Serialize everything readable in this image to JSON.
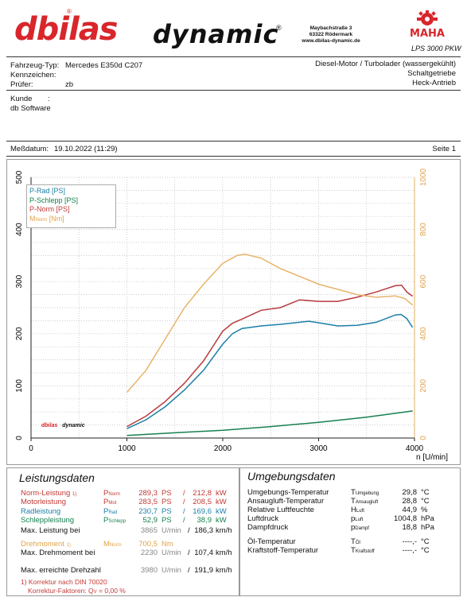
{
  "header": {
    "brand1": "dbilas",
    "brand2": "dynamic",
    "address": [
      "Maybachstraße 3",
      "63322 Rödermark",
      "www.dbilas-dynamic.de"
    ],
    "maha": "MAHA",
    "model": "LPS 3000 PKW"
  },
  "vehicle": {
    "type_label": "Fahrzeug-Typ:",
    "type_value": "Mercedes E350d C207",
    "plate_label": "Kennzeichen:",
    "tester_label": "Prüfer:",
    "tester_value": "zb",
    "engine": "Diesel-Motor / Turbolader (wassergekühlt)",
    "gearbox": "Schaltgetriebe",
    "drive": "Heck-Antrieb"
  },
  "customer": {
    "label": "Kunde",
    "sep": ":",
    "value": "db Software"
  },
  "meta": {
    "date_label": "Meßdatum:",
    "date_value": "19.10.2022 (11:29)",
    "page": "Seite 1"
  },
  "chart_data": {
    "type": "line",
    "xlabel": "n [U/min]",
    "xlim": [
      0,
      4000
    ],
    "ylim_left": [
      0,
      500
    ],
    "ylim_right": [
      0,
      1000
    ],
    "x_ticks": [
      "0",
      "1000",
      "2000",
      "3000",
      "4000"
    ],
    "y_ticks_left": [
      "0",
      "100",
      "200",
      "300",
      "400",
      "500"
    ],
    "y_ticks_right": [
      "0",
      "200",
      "400",
      "600",
      "800",
      "1000"
    ],
    "legend": [
      "P-Rad [PS]",
      "P-Schlepp [PS]",
      "P-Norm [PS]",
      "M",
      "Norm",
      "[Nm]"
    ],
    "series": [
      {
        "name": "P-Rad [PS]",
        "color": "#1a7fa8",
        "axis": "left",
        "x": [
          1000,
          1200,
          1400,
          1600,
          1800,
          2000,
          2100,
          2200,
          2400,
          2600,
          2800,
          2900,
          3000,
          3200,
          3400,
          3600,
          3800,
          3860,
          3920,
          3980
        ],
        "y": [
          18,
          35,
          60,
          92,
          130,
          180,
          200,
          210,
          215,
          218,
          222,
          224,
          221,
          215,
          216,
          222,
          236,
          237,
          229,
          212
        ]
      },
      {
        "name": "P-Schlepp [PS]",
        "color": "#17804f",
        "axis": "left",
        "x": [
          1000,
          1500,
          2000,
          2500,
          3000,
          3500,
          3980
        ],
        "y": [
          5,
          10,
          15,
          22,
          30,
          40,
          52
        ]
      },
      {
        "name": "P-Norm [PS]",
        "color": "#b83a3f",
        "axis": "left",
        "x": [
          1000,
          1200,
          1400,
          1600,
          1800,
          2000,
          2100,
          2200,
          2400,
          2600,
          2800,
          3000,
          3200,
          3400,
          3600,
          3800,
          3865,
          3920,
          3980
        ],
        "y": [
          22,
          42,
          70,
          105,
          148,
          205,
          220,
          228,
          245,
          250,
          265,
          262,
          262,
          270,
          280,
          292,
          293,
          280,
          272
        ]
      },
      {
        "name": "M Norm [Nm]",
        "color": "#e8b36a",
        "axis": "right",
        "x": [
          1000,
          1200,
          1400,
          1600,
          1800,
          2000,
          2100,
          2150,
          2230,
          2400,
          2600,
          2800,
          3000,
          3200,
          3400,
          3600,
          3800,
          3900,
          3980
        ],
        "y": [
          175,
          260,
          380,
          500,
          590,
          670,
          690,
          700,
          705,
          690,
          650,
          620,
          590,
          570,
          550,
          540,
          545,
          535,
          510
        ]
      }
    ]
  },
  "performance": {
    "title": "Leistungsdaten",
    "rows": [
      {
        "label": "Norm-Leistung",
        "fn": "1)",
        "sym": "P",
        "symsub": "Norm",
        "v1": "289,3",
        "u1": "PS",
        "sep": "/",
        "v2": "212,8",
        "u2": "kW"
      },
      {
        "label": "Motorleistung",
        "fn": "",
        "sym": "P",
        "symsub": "Mot",
        "v1": "283,5",
        "u1": "PS",
        "sep": "/",
        "v2": "208,5",
        "u2": "kW"
      },
      {
        "label": "Radleistung",
        "fn": "",
        "sym": "P",
        "symsub": "Rad",
        "v1": "230,7",
        "u1": "PS",
        "sep": "/",
        "v2": "169,6",
        "u2": "kW"
      },
      {
        "label": "Schleppleistung",
        "fn": "",
        "sym": "P",
        "symsub": "Schlepp",
        "v1": "52,9",
        "u1": "PS",
        "sep": "/",
        "v2": "38,9",
        "u2": "kW"
      }
    ],
    "max_power": {
      "label": "Max. Leistung bei",
      "v1": "3865",
      "u1": "U/min",
      "sep": "/",
      "v2": "186,3",
      "u2": "km/h"
    },
    "torque": {
      "label": "Drehmoment",
      "fn": "1)",
      "sym": "M",
      "symsub": "Norm",
      "v1": "700,5",
      "u1": "Nm"
    },
    "max_torque": {
      "label": "Max. Drehmoment bei",
      "v1": "2230",
      "u1": "U/min",
      "sep": "/",
      "v2": "107,4",
      "u2": "km/h"
    },
    "max_rpm": {
      "label": "Max. erreichte Drehzahl",
      "v1": "3980",
      "u1": "U/min",
      "sep": "/",
      "v2": "191,9",
      "u2": "km/h"
    },
    "footnote1": "1) Korrektur nach DIN 70020",
    "footnote2": "Korrektur-Faktoren: Q",
    "footnote2_sub": "V",
    "footnote2_val": "=   0,00 %"
  },
  "environment": {
    "title": "Umgebungsdaten",
    "rows": [
      {
        "label": "Umgebungs-Temperatur",
        "sym": "T",
        "symsub": "Umgebung",
        "v": "29,8",
        "u": "°C"
      },
      {
        "label": "Ansaugluft-Temperatur",
        "sym": "T",
        "symsub": "Ansaugluft",
        "v": "28,8",
        "u": "°C"
      },
      {
        "label": "Relative Luftfeuchte",
        "sym": "H",
        "symsub": "Luft",
        "v": "44,9",
        "u": "%"
      },
      {
        "label": "Luftdruck",
        "sym": "p",
        "symsub": "Luft",
        "v": "1004,8",
        "u": "hPa"
      },
      {
        "label": "Dampfdruck",
        "sym": "p",
        "symsub": "Dampf",
        "v": "18,8",
        "u": "hPa"
      },
      {
        "label": "Öl-Temperatur",
        "sym": "T",
        "symsub": "Öl",
        "v": "----,-",
        "u": "°C"
      },
      {
        "label": "Kraftstoff-Temperatur",
        "sym": "T",
        "symsub": "Kraftstoff",
        "v": "----,-",
        "u": "°C"
      }
    ]
  }
}
